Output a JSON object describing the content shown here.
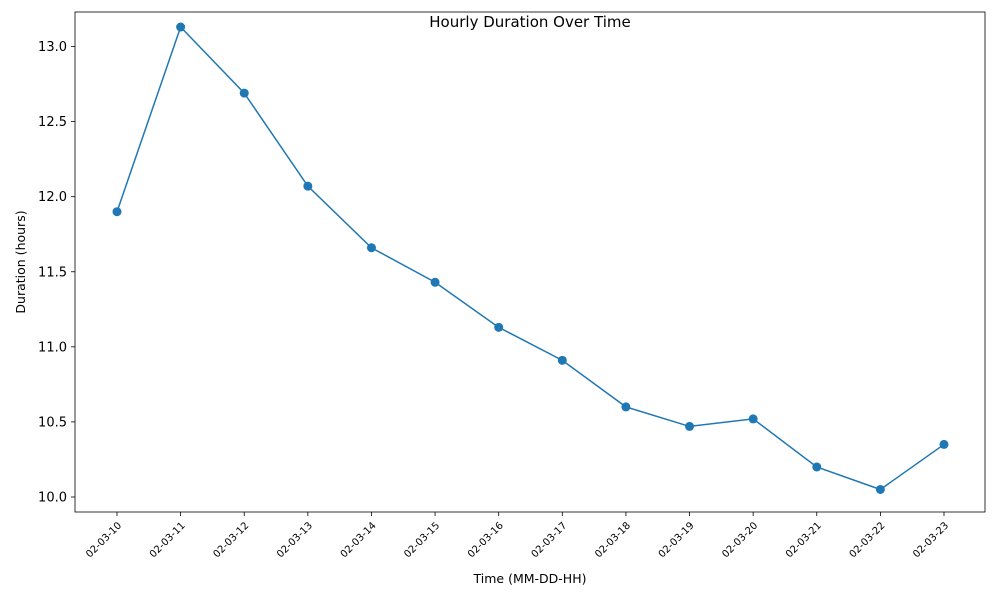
{
  "chart_data": {
    "type": "line",
    "title": "Hourly Duration Over Time",
    "xlabel": "Time (MM-DD-HH)",
    "ylabel": "Duration (hours)",
    "categories": [
      "02-03-10",
      "02-03-11",
      "02-03-12",
      "02-03-13",
      "02-03-14",
      "02-03-15",
      "02-03-16",
      "02-03-17",
      "02-03-18",
      "02-03-19",
      "02-03-20",
      "02-03-21",
      "02-03-22",
      "02-03-23"
    ],
    "values": [
      11.9,
      13.13,
      12.69,
      12.07,
      11.66,
      11.43,
      11.13,
      10.91,
      10.6,
      10.47,
      10.52,
      10.2,
      10.05,
      10.35
    ],
    "ylim": [
      9.9,
      13.23
    ],
    "yticks": [
      10.0,
      10.5,
      11.0,
      11.5,
      12.0,
      12.5,
      13.0
    ],
    "ytick_labels": [
      "10.0",
      "10.5",
      "11.0",
      "11.5",
      "12.0",
      "12.5",
      "13.0"
    ],
    "xtick_rotation": 45,
    "marker": "circle",
    "grid": false,
    "legend": false,
    "line_color": "#1f77b4"
  }
}
